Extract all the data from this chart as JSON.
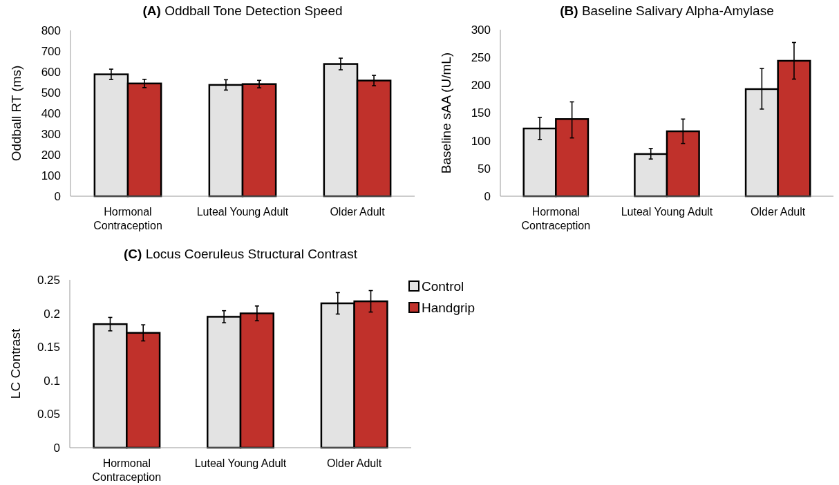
{
  "chart_data": [
    {
      "type": "bar",
      "title": "(A) Oddball Tone Detection Speed",
      "ylabel": "Oddball RT (ms)",
      "categories": [
        "Hormonal Contraception",
        "Luteal Young Adult",
        "Older Adult"
      ],
      "ylim": [
        0,
        800
      ],
      "yticks": [
        0,
        100,
        200,
        300,
        400,
        500,
        600,
        700,
        800
      ],
      "grid": false,
      "legend": false,
      "series": [
        {
          "color": "#e3e3e3",
          "values": [
            588,
            537,
            638
          ],
          "errors": [
            25,
            25,
            28
          ]
        },
        {
          "color": "#c0312b",
          "values": [
            544,
            541,
            558
          ],
          "errors": [
            20,
            18,
            25
          ]
        }
      ]
    },
    {
      "type": "bar",
      "title": "(B) Baseline Salivary Alpha-Amylase",
      "ylabel": "Baseline sAA (U/mL)",
      "categories": [
        "Hormonal Contraception",
        "Luteal Young Adult",
        "Older Adult"
      ],
      "ylim": [
        0,
        300
      ],
      "yticks": [
        0,
        50,
        100,
        150,
        200,
        250,
        300
      ],
      "grid": false,
      "legend": false,
      "series": [
        {
          "color": "#e3e3e3",
          "values": [
            122,
            76,
            193
          ],
          "errors": [
            [
              102,
              142
            ],
            [
              67,
              86
            ],
            [
              157,
              230
            ]
          ]
        },
        {
          "color": "#c0312b",
          "values": [
            139,
            117,
            244
          ],
          "errors": [
            [
              105,
              170
            ],
            [
              95,
              139
            ],
            [
              211,
              277
            ]
          ]
        }
      ]
    },
    {
      "type": "bar",
      "title": "(C) Locus Coeruleus Structural Contrast",
      "ylabel": "LC Contrast",
      "categories": [
        "Hormonal Contraception",
        "Luteal Young Adult",
        "Older Adult"
      ],
      "ylim": [
        0,
        0.25
      ],
      "yticks": [
        0,
        0.05,
        0.1,
        0.15,
        0.2,
        0.25
      ],
      "grid": false,
      "legend": "right",
      "series": [
        {
          "name": "Control",
          "color": "#e3e3e3",
          "values": [
            0.184,
            0.195,
            0.215
          ],
          "errors": [
            0.01,
            0.009,
            0.016
          ]
        },
        {
          "name": "Handgrip",
          "color": "#c0312b",
          "values": [
            0.171,
            0.2,
            0.218
          ],
          "errors": [
            0.012,
            0.011,
            0.016
          ]
        }
      ]
    }
  ]
}
